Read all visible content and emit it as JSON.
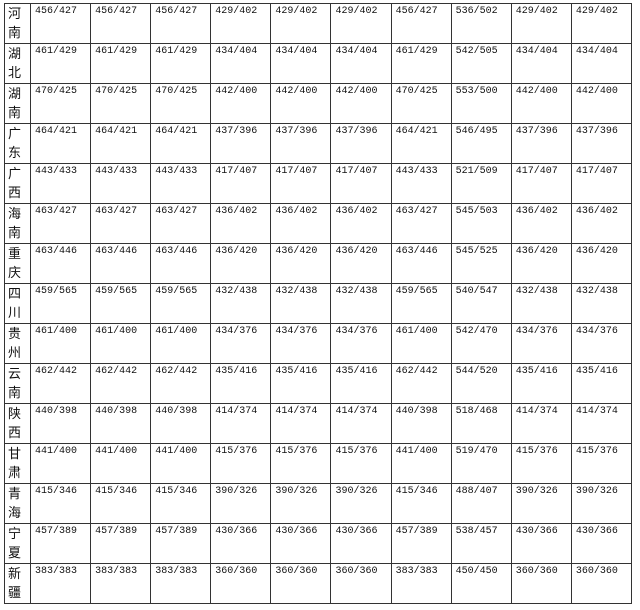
{
  "rows": [
    {
      "province": "河南",
      "values": [
        "456/427",
        "456/427",
        "456/427",
        "429/402",
        "429/402",
        "429/402",
        "456/427",
        "536/502",
        "429/402",
        "429/402"
      ]
    },
    {
      "province": "湖北",
      "values": [
        "461/429",
        "461/429",
        "461/429",
        "434/404",
        "434/404",
        "434/404",
        "461/429",
        "542/505",
        "434/404",
        "434/404"
      ]
    },
    {
      "province": "湖南",
      "values": [
        "470/425",
        "470/425",
        "470/425",
        "442/400",
        "442/400",
        "442/400",
        "470/425",
        "553/500",
        "442/400",
        "442/400"
      ]
    },
    {
      "province": "广东",
      "values": [
        "464/421",
        "464/421",
        "464/421",
        "437/396",
        "437/396",
        "437/396",
        "464/421",
        "546/495",
        "437/396",
        "437/396"
      ]
    },
    {
      "province": "广西",
      "values": [
        "443/433",
        "443/433",
        "443/433",
        "417/407",
        "417/407",
        "417/407",
        "443/433",
        "521/509",
        "417/407",
        "417/407"
      ]
    },
    {
      "province": "海南",
      "values": [
        "463/427",
        "463/427",
        "463/427",
        "436/402",
        "436/402",
        "436/402",
        "463/427",
        "545/503",
        "436/402",
        "436/402"
      ]
    },
    {
      "province": "重庆",
      "values": [
        "463/446",
        "463/446",
        "463/446",
        "436/420",
        "436/420",
        "436/420",
        "463/446",
        "545/525",
        "436/420",
        "436/420"
      ]
    },
    {
      "province": "四川",
      "values": [
        "459/565",
        "459/565",
        "459/565",
        "432/438",
        "432/438",
        "432/438",
        "459/565",
        "540/547",
        "432/438",
        "432/438"
      ]
    },
    {
      "province": "贵州",
      "values": [
        "461/400",
        "461/400",
        "461/400",
        "434/376",
        "434/376",
        "434/376",
        "461/400",
        "542/470",
        "434/376",
        "434/376"
      ]
    },
    {
      "province": "云南",
      "values": [
        "462/442",
        "462/442",
        "462/442",
        "435/416",
        "435/416",
        "435/416",
        "462/442",
        "544/520",
        "435/416",
        "435/416"
      ]
    },
    {
      "province": "陕西",
      "values": [
        "440/398",
        "440/398",
        "440/398",
        "414/374",
        "414/374",
        "414/374",
        "440/398",
        "518/468",
        "414/374",
        "414/374"
      ]
    },
    {
      "province": "甘肃",
      "values": [
        "441/400",
        "441/400",
        "441/400",
        "415/376",
        "415/376",
        "415/376",
        "441/400",
        "519/470",
        "415/376",
        "415/376"
      ]
    },
    {
      "province": "青海",
      "values": [
        "415/346",
        "415/346",
        "415/346",
        "390/326",
        "390/326",
        "390/326",
        "415/346",
        "488/407",
        "390/326",
        "390/326"
      ]
    },
    {
      "province": "宁夏",
      "values": [
        "457/389",
        "457/389",
        "457/389",
        "430/366",
        "430/366",
        "430/366",
        "457/389",
        "538/457",
        "430/366",
        "430/366"
      ]
    },
    {
      "province": "新疆",
      "values": [
        "383/383",
        "383/383",
        "383/383",
        "360/360",
        "360/360",
        "360/360",
        "383/383",
        "450/450",
        "360/360",
        "360/360"
      ]
    }
  ]
}
